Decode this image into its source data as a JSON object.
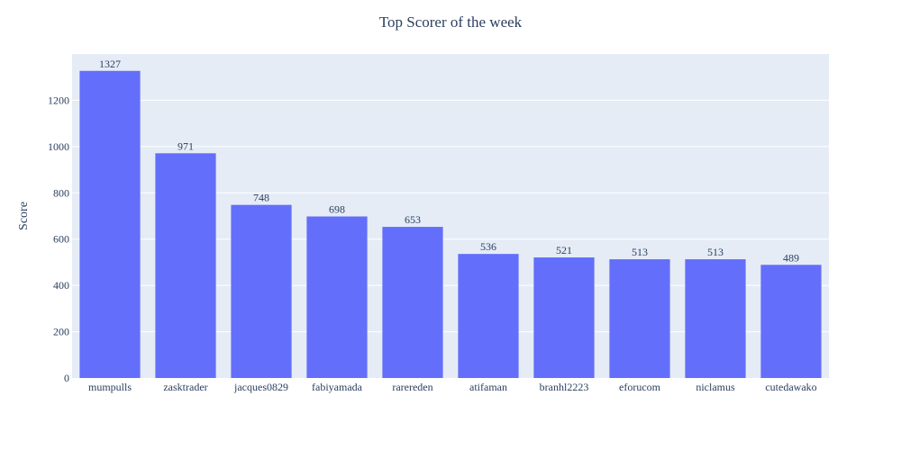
{
  "chart_data": {
    "type": "bar",
    "title": "Top Scorer of the week",
    "xlabel": "",
    "ylabel": "Score",
    "ylim": [
      0,
      1400
    ],
    "yticks": [
      0,
      200,
      400,
      600,
      800,
      1000,
      1200
    ],
    "grid": true,
    "categories": [
      "mumpulls",
      "zasktrader",
      "jacques0829",
      "fabiyamada",
      "rarereden",
      "atifaman",
      "branhl2223",
      "eforucom",
      "niclamus",
      "cutedawako"
    ],
    "values": [
      1327,
      971,
      748,
      698,
      653,
      536,
      521,
      513,
      513,
      489
    ],
    "colors": {
      "bar": "#636efa",
      "plot_background": "#e5ecf6",
      "grid": "#ffffff",
      "text": "#2a3f5f"
    }
  }
}
